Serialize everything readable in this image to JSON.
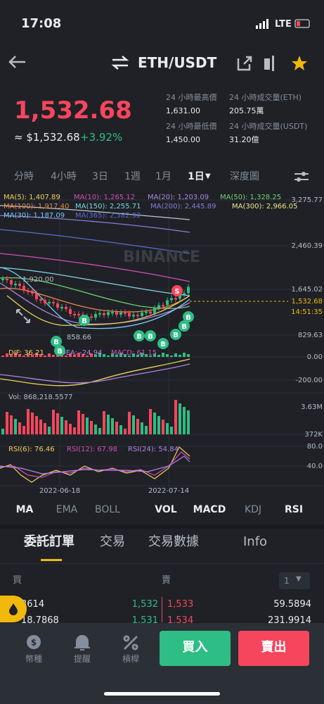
{
  "status": {
    "time": "17:08",
    "network": "LTE"
  },
  "header": {
    "pair": "ETH/USDT"
  },
  "price": {
    "last": "1,532.68",
    "fiat": "≈ $1,532.68",
    "change": "+3.92%"
  },
  "stats": [
    {
      "label": "24 小時最高價",
      "value": "1,631.00"
    },
    {
      "label": "24 小時成交量(ETH)",
      "value": "205.75萬"
    },
    {
      "label": "24 小時最低價",
      "value": "1,450.00"
    },
    {
      "label": "24 小時成交量(USDT)",
      "value": "31.20億"
    }
  ],
  "intervals": [
    "分時",
    "4小時",
    "3日",
    "1週",
    "1月",
    "1日",
    "深度圖"
  ],
  "chart": {
    "watermark": "BINANCE",
    "ma": [
      "MA(5): 1,407.89",
      "MA(10): 1,265.12",
      "MA(20): 1,203.09",
      "MA(50): 1,328.25",
      "MA(100): 1,917.40",
      "MA(150): 2,255.71",
      "MA(200): 2,445.89",
      "MA(300): 2,966.05",
      "MA(30): 1,187.09",
      "MA(365): 2,382.92"
    ],
    "price_axis": [
      "3,275.77",
      "2,460.39",
      "1,645.02",
      "829.63"
    ],
    "last_price": "1,532.68",
    "countdown": "14:51:35",
    "high_mark": "1,920.00",
    "low_mark": "858.66",
    "buy_marker": "B",
    "sell_marker": "S",
    "macd": [
      "DIF: 36.21",
      "DEA: -24.94",
      "MACD: 61.15"
    ],
    "macd_axis": [
      "0.00",
      "-200.00"
    ],
    "vol": "Vol: 868,218.5577",
    "vol_axis": [
      "3.63M",
      "372K"
    ],
    "rsi": [
      "RSI(6): 76.46",
      "RSI(12): 67.98",
      "RSI(24): 54.84"
    ],
    "rsi_axis": [
      "80.0",
      "40.0"
    ],
    "dates": [
      "2022-06-18",
      "2022-07-14"
    ]
  },
  "indicators": [
    "MA",
    "EMA",
    "BOLL",
    "VOL",
    "MACD",
    "KDJ",
    "RSI"
  ],
  "order_tabs": [
    "委託訂單",
    "交易",
    "交易數據",
    "Info"
  ],
  "order_book": {
    "buy": "買",
    "sell": "賣",
    "depth": "1",
    "rows": [
      [
        "3614",
        "1,532",
        "1,533",
        "59.5894"
      ],
      [
        "18.7868",
        "1,531",
        "1,534",
        "231.9914"
      ]
    ]
  },
  "nav": [
    "幣種",
    "提醒",
    "槓桿"
  ],
  "actions": {
    "buy": "買入",
    "sell": "賣出"
  }
}
